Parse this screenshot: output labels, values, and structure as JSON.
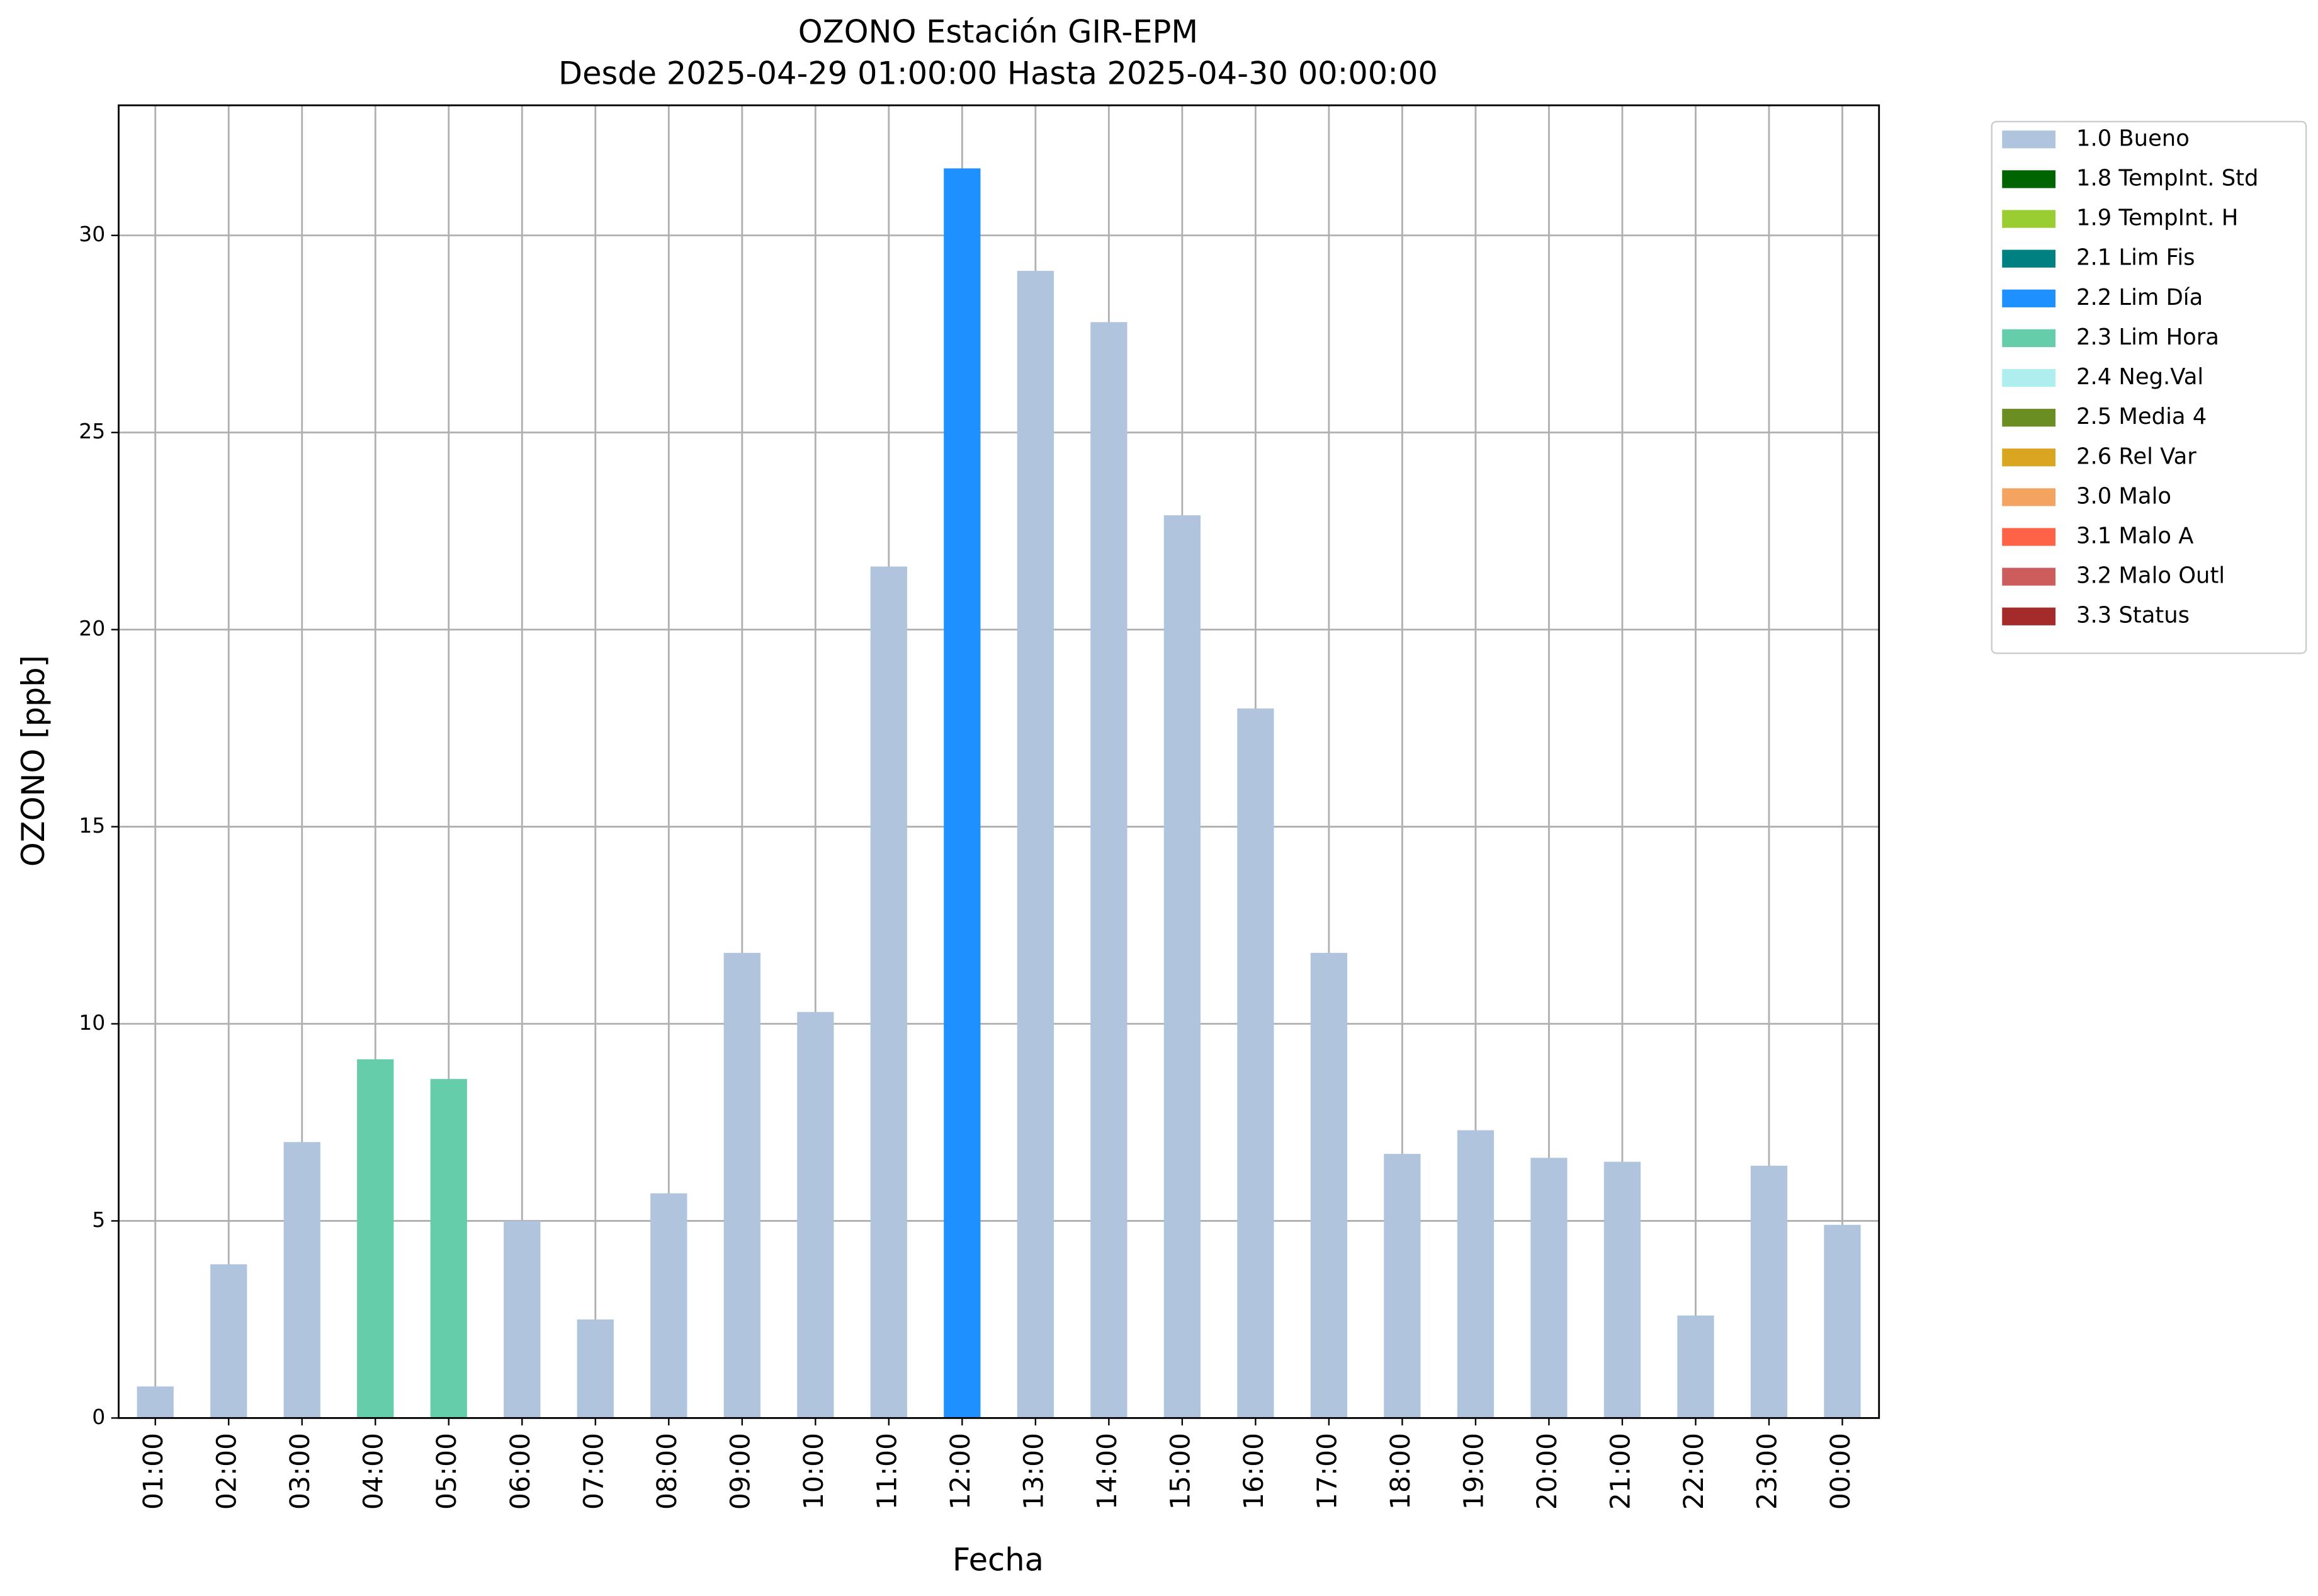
{
  "chart_data": {
    "type": "bar",
    "title": "OZONO Estación GIR-EPM",
    "subtitle": "Desde 2025-04-29 01:00:00 Hasta 2025-04-30 00:00:00",
    "x_label": "Fecha",
    "y_label": "OZONO [ppb]",
    "categories": [
      "01:00",
      "02:00",
      "03:00",
      "04:00",
      "05:00",
      "06:00",
      "07:00",
      "08:00",
      "09:00",
      "10:00",
      "11:00",
      "12:00",
      "13:00",
      "14:00",
      "15:00",
      "16:00",
      "17:00",
      "18:00",
      "19:00",
      "20:00",
      "21:00",
      "22:00",
      "23:00",
      "00:00"
    ],
    "series": [
      {
        "name": "1.0 Bueno",
        "color": "#b0c4de",
        "values": [
          0.8,
          3.9,
          7.0,
          null,
          null,
          5.0,
          2.5,
          5.7,
          11.8,
          10.3,
          21.6,
          null,
          29.1,
          27.8,
          22.9,
          18.0,
          11.8,
          6.7,
          7.3,
          6.6,
          6.5,
          2.6,
          6.4,
          4.9
        ]
      },
      {
        "name": "1.8 TempInt. Std",
        "color": "#006400",
        "values": [
          null,
          null,
          null,
          null,
          null,
          null,
          null,
          null,
          null,
          null,
          null,
          null,
          null,
          null,
          null,
          null,
          null,
          null,
          null,
          null,
          null,
          null,
          null,
          null
        ]
      },
      {
        "name": "1.9 TempInt. H",
        "color": "#9acd32",
        "values": [
          null,
          null,
          null,
          null,
          null,
          null,
          null,
          null,
          null,
          null,
          null,
          null,
          null,
          null,
          null,
          null,
          null,
          null,
          null,
          null,
          null,
          null,
          null,
          null
        ]
      },
      {
        "name": "2.1 Lim Fis",
        "color": "#008080",
        "values": [
          null,
          null,
          null,
          null,
          null,
          null,
          null,
          null,
          null,
          null,
          null,
          null,
          null,
          null,
          null,
          null,
          null,
          null,
          null,
          null,
          null,
          null,
          null,
          null
        ]
      },
      {
        "name": "2.2 Lim Día",
        "color": "#1e90ff",
        "values": [
          null,
          null,
          null,
          null,
          null,
          null,
          null,
          null,
          null,
          null,
          null,
          31.7,
          null,
          null,
          null,
          null,
          null,
          null,
          null,
          null,
          null,
          null,
          null,
          null
        ]
      },
      {
        "name": "2.3 Lim Hora",
        "color": "#66cdaa",
        "values": [
          null,
          null,
          null,
          9.1,
          8.6,
          null,
          null,
          null,
          null,
          null,
          null,
          null,
          null,
          null,
          null,
          null,
          null,
          null,
          null,
          null,
          null,
          null,
          null,
          null
        ]
      },
      {
        "name": "2.4 Neg.Val",
        "color": "#afeeee",
        "values": [
          null,
          null,
          null,
          null,
          null,
          null,
          null,
          null,
          null,
          null,
          null,
          null,
          null,
          null,
          null,
          null,
          null,
          null,
          null,
          null,
          null,
          null,
          null,
          null
        ]
      },
      {
        "name": "2.5 Media 4",
        "color": "#6b8e23",
        "values": [
          null,
          null,
          null,
          null,
          null,
          null,
          null,
          null,
          null,
          null,
          null,
          null,
          null,
          null,
          null,
          null,
          null,
          null,
          null,
          null,
          null,
          null,
          null,
          null
        ]
      },
      {
        "name": "2.6 Rel Var",
        "color": "#daa520",
        "values": [
          null,
          null,
          null,
          null,
          null,
          null,
          null,
          null,
          null,
          null,
          null,
          null,
          null,
          null,
          null,
          null,
          null,
          null,
          null,
          null,
          null,
          null,
          null,
          null
        ]
      },
      {
        "name": "3.0 Malo",
        "color": "#f4a460",
        "values": [
          null,
          null,
          null,
          null,
          null,
          null,
          null,
          null,
          null,
          null,
          null,
          null,
          null,
          null,
          null,
          null,
          null,
          null,
          null,
          null,
          null,
          null,
          null,
          null
        ]
      },
      {
        "name": "3.1 Malo A",
        "color": "#ff6347",
        "values": [
          null,
          null,
          null,
          null,
          null,
          null,
          null,
          null,
          null,
          null,
          null,
          null,
          null,
          null,
          null,
          null,
          null,
          null,
          null,
          null,
          null,
          null,
          null,
          null
        ]
      },
      {
        "name": "3.2 Malo Outl",
        "color": "#cd5c5c",
        "values": [
          null,
          null,
          null,
          null,
          null,
          null,
          null,
          null,
          null,
          null,
          null,
          null,
          null,
          null,
          null,
          null,
          null,
          null,
          null,
          null,
          null,
          null,
          null,
          null
        ]
      },
      {
        "name": "3.3 Status",
        "color": "#a52a2a",
        "values": [
          null,
          null,
          null,
          null,
          null,
          null,
          null,
          null,
          null,
          null,
          null,
          null,
          null,
          null,
          null,
          null,
          null,
          null,
          null,
          null,
          null,
          null,
          null,
          null
        ]
      }
    ],
    "ylim": [
      0,
      33.3
    ],
    "yticks": [
      0,
      5,
      10,
      15,
      20,
      25,
      30
    ],
    "grid": true,
    "legend": "outside-upper-right"
  }
}
